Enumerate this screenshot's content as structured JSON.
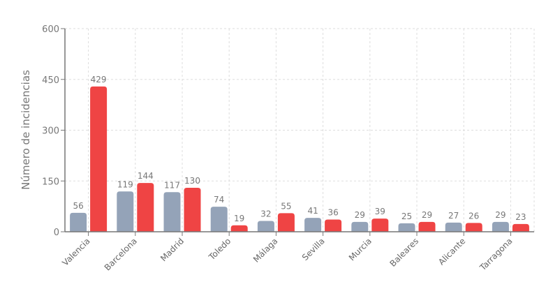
{
  "chart_data": {
    "type": "bar",
    "title": "",
    "xlabel": "",
    "ylabel": "Número de incidencias",
    "ylim": [
      0,
      600
    ],
    "yticks": [
      0,
      150,
      300,
      450,
      600
    ],
    "grid": true,
    "categories": [
      "Valencia",
      "Barcelona",
      "Madrid",
      "Toledo",
      "Málaga",
      "Sevilla",
      "Murcia",
      "Baleares",
      "Alicante",
      "Tarragona"
    ],
    "series": [
      {
        "color": "#94a3b8",
        "values": [
          56,
          119,
          117,
          74,
          32,
          41,
          29,
          25,
          27,
          29
        ]
      },
      {
        "color": "#ef4444",
        "values": [
          429,
          144,
          130,
          19,
          55,
          36,
          39,
          29,
          26,
          23
        ]
      }
    ]
  }
}
